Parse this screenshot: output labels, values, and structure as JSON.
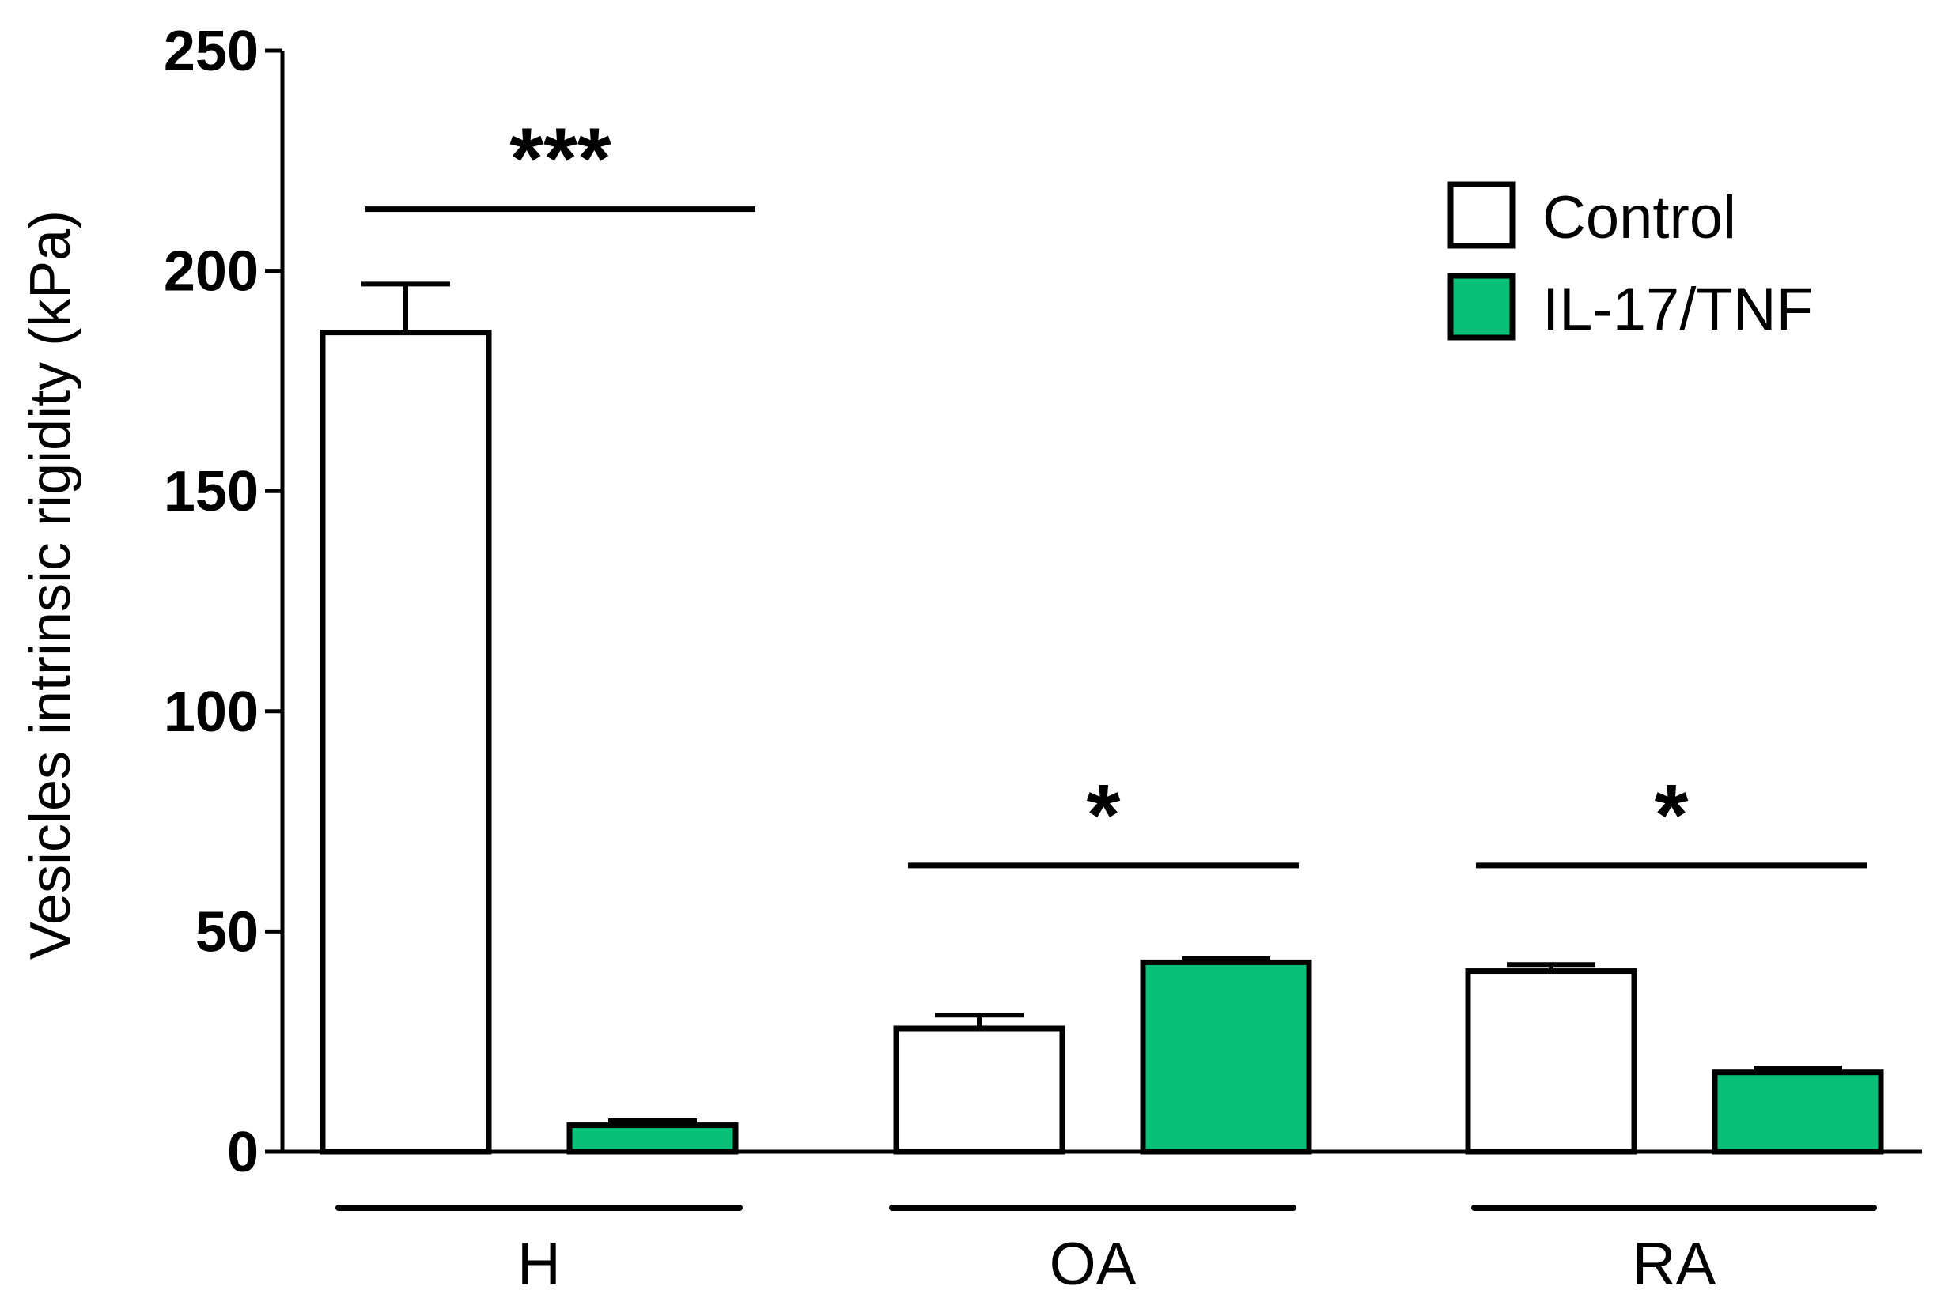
{
  "chart_data": {
    "type": "bar",
    "categories": [
      "H",
      "OA",
      "RA"
    ],
    "series": [
      {
        "name": "Control",
        "values": [
          186,
          28,
          41
        ],
        "errors": [
          11,
          3,
          1.5
        ],
        "color": "#ffffff"
      },
      {
        "name": "IL-17/TNF",
        "values": [
          6,
          43,
          18
        ],
        "errors": [
          1,
          0.8,
          1
        ],
        "color": "#08bf78"
      }
    ],
    "ylabel": "Vesicles intrinsic rigidity (kPa)",
    "xlabel": "",
    "ylim": [
      0,
      250
    ],
    "yticks": [
      0,
      50,
      100,
      150,
      200,
      250
    ],
    "significance": [
      {
        "category": "H",
        "label": "***",
        "level": 214
      },
      {
        "category": "OA",
        "label": "*",
        "level": 65
      },
      {
        "category": "RA",
        "label": "*",
        "level": 65
      }
    ],
    "legend_position": "top-right",
    "grid": false
  }
}
